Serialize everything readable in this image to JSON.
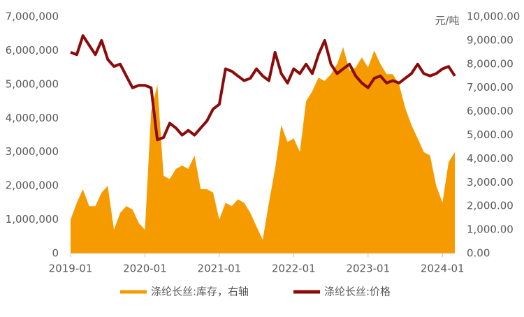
{
  "chart_data": {
    "type": "line",
    "y2_label": "元/吨",
    "xlim": [
      "2019-01",
      "2024-03"
    ],
    "xticks": [
      "2019-01",
      "2020-01",
      "2021-01",
      "2022-01",
      "2023-01",
      "2024-01"
    ],
    "ylim": [
      0,
      7000000
    ],
    "yticks": [
      0,
      {
        "value": 1000000,
        "label": "1,000,000"
      },
      {
        "value": 2000000,
        "label": "2,000,000"
      },
      {
        "value": 3000000,
        "label": "3,000,000"
      },
      {
        "value": 4000000,
        "label": "4,000,000"
      },
      {
        "value": 5000000,
        "label": "5,000,000"
      },
      {
        "value": 6000000,
        "label": "6,000,000"
      },
      {
        "value": 7000000,
        "label": "7,000,000"
      }
    ],
    "y2lim": [
      0,
      10000
    ],
    "y2ticks": [
      {
        "value": 0,
        "label": "0.00"
      },
      {
        "value": 1000,
        "label": "1,000.00"
      },
      {
        "value": 2000,
        "label": "2,000.00"
      },
      {
        "value": 3000,
        "label": "3,000.00"
      },
      {
        "value": 4000,
        "label": "4,000.00"
      },
      {
        "value": 5000,
        "label": "5,000.00"
      },
      {
        "value": 6000,
        "label": "6,000.00"
      },
      {
        "value": 7000,
        "label": "7,000.00"
      },
      {
        "value": 8000,
        "label": "8,000.00"
      },
      {
        "value": 9000,
        "label": "9,000.00"
      },
      {
        "value": 10000,
        "label": "10,000.00"
      }
    ],
    "x": [
      "2019-01",
      "2019-02",
      "2019-03",
      "2019-04",
      "2019-05",
      "2019-06",
      "2019-07",
      "2019-08",
      "2019-09",
      "2019-10",
      "2019-11",
      "2019-12",
      "2020-01",
      "2020-02",
      "2020-03",
      "2020-04",
      "2020-05",
      "2020-06",
      "2020-07",
      "2020-08",
      "2020-09",
      "2020-10",
      "2020-11",
      "2020-12",
      "2021-01",
      "2021-02",
      "2021-03",
      "2021-04",
      "2021-05",
      "2021-06",
      "2021-07",
      "2021-08",
      "2021-09",
      "2021-10",
      "2021-11",
      "2021-12",
      "2022-01",
      "2022-02",
      "2022-03",
      "2022-04",
      "2022-05",
      "2022-06",
      "2022-07",
      "2022-08",
      "2022-09",
      "2022-10",
      "2022-11",
      "2022-12",
      "2023-01",
      "2023-02",
      "2023-03",
      "2023-04",
      "2023-05",
      "2023-06",
      "2023-07",
      "2023-08",
      "2023-09",
      "2023-10",
      "2023-11",
      "2023-12",
      "2024-01",
      "2024-02",
      "2024-03"
    ],
    "series": [
      {
        "name": "涤纶长丝:库存，右轴",
        "kind": "area",
        "color": "#f59b00",
        "values": [
          1000000,
          1500000,
          1900000,
          1400000,
          1400000,
          1800000,
          2000000,
          700000,
          1200000,
          1400000,
          1300000,
          900000,
          700000,
          4200000,
          5000000,
          2300000,
          2200000,
          2500000,
          2600000,
          2500000,
          2900000,
          1900000,
          1900000,
          1800000,
          1000000,
          1500000,
          1400000,
          1600000,
          1500000,
          1200000,
          800000,
          400000,
          1500000,
          2500000,
          3800000,
          3300000,
          3400000,
          3000000,
          4500000,
          4800000,
          5200000,
          5100000,
          5300000,
          5600000,
          6100000,
          5400000,
          5500000,
          5800000,
          5500000,
          6000000,
          5600000,
          5300000,
          5300000,
          5000000,
          4300000,
          3800000,
          3400000,
          3000000,
          2900000,
          2000000,
          1500000,
          2700000,
          3000000
        ]
      },
      {
        "name": "涤纶长丝:价格",
        "kind": "line",
        "axis": "y2",
        "color": "#8b0a0a",
        "values": [
          8500,
          8400,
          9200,
          8800,
          8400,
          9000,
          8200,
          7900,
          8000,
          7500,
          7000,
          7100,
          7100,
          7000,
          4800,
          4900,
          5500,
          5300,
          5000,
          5200,
          5000,
          5300,
          5600,
          6100,
          6300,
          7800,
          7700,
          7500,
          7300,
          7400,
          7800,
          7500,
          7300,
          8500,
          7600,
          7200,
          7800,
          7600,
          8000,
          7600,
          8400,
          9000,
          8000,
          7600,
          7800,
          8000,
          7500,
          7200,
          7000,
          7400,
          7500,
          7200,
          7300,
          7200,
          7400,
          7600,
          8000,
          7600,
          7500,
          7600,
          7800,
          7900,
          7500
        ]
      }
    ]
  }
}
